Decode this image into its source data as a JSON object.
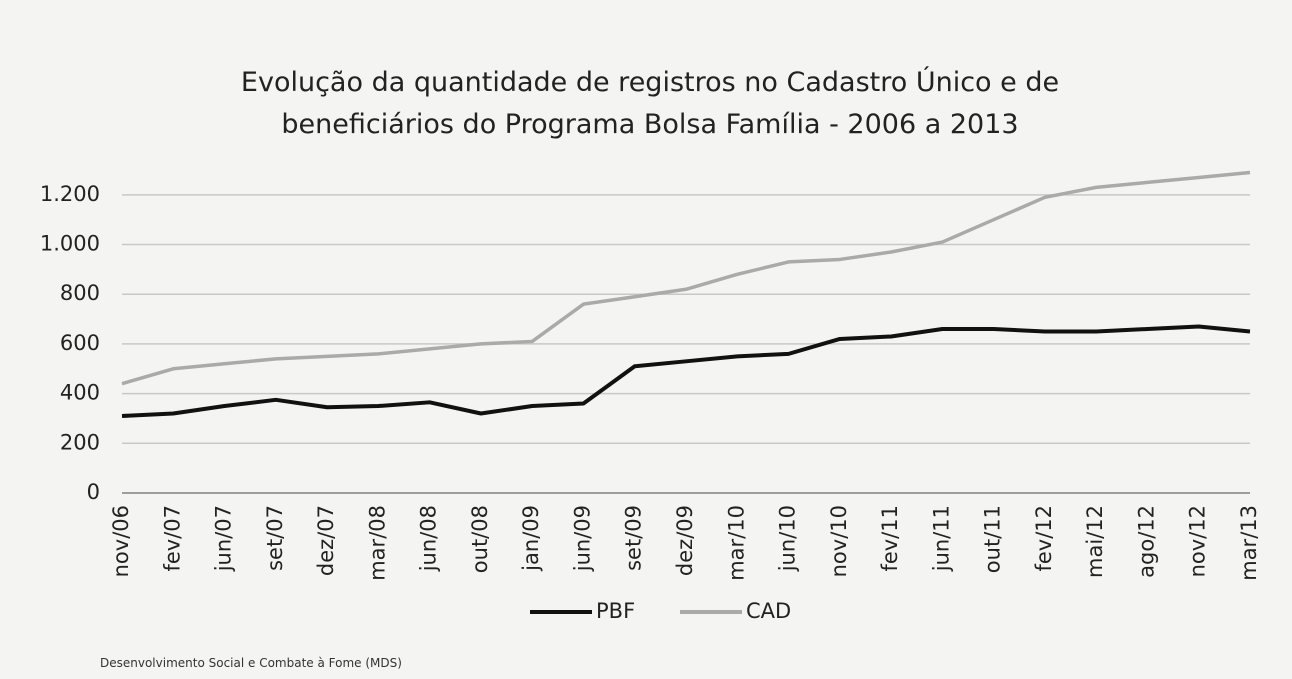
{
  "chart_data": {
    "type": "line",
    "title": "Evolução da quantidade de registros no Cadastro Único e de beneficiários do Programa Bolsa Família - 2006 a 2013",
    "source": "Desenvolvimento Social e Combate à Fome (MDS)",
    "categories": [
      "nov/06",
      "fev/07",
      "jun/07",
      "set/07",
      "dez/07",
      "mar/08",
      "jun/08",
      "out/08",
      "jan/09",
      "jun/09",
      "set/09",
      "dez/09",
      "mar/10",
      "jun/10",
      "nov/10",
      "fev/11",
      "jun/11",
      "out/11",
      "fev/12",
      "mai/12",
      "ago/12",
      "nov/12",
      "mar/13"
    ],
    "series": [
      {
        "name": "PBF",
        "color": "#111111",
        "values": [
          310,
          320,
          350,
          375,
          345,
          350,
          365,
          320,
          350,
          360,
          510,
          530,
          550,
          560,
          620,
          630,
          660,
          660,
          650,
          650,
          660,
          670,
          650
        ]
      },
      {
        "name": "CAD",
        "color": "#aaaaaa",
        "values": [
          440,
          500,
          520,
          540,
          550,
          560,
          580,
          600,
          610,
          760,
          790,
          820,
          880,
          930,
          940,
          970,
          1010,
          1100,
          1190,
          1230,
          1250,
          1270,
          1290
        ]
      }
    ],
    "ylim": [
      0,
      1300
    ],
    "yticks": [
      0,
      200,
      400,
      600,
      800,
      {
        "value": 1000,
        "label": "1.000"
      },
      {
        "value": 1200,
        "label": "1.200"
      }
    ],
    "grid": true,
    "legend": "bottom"
  }
}
